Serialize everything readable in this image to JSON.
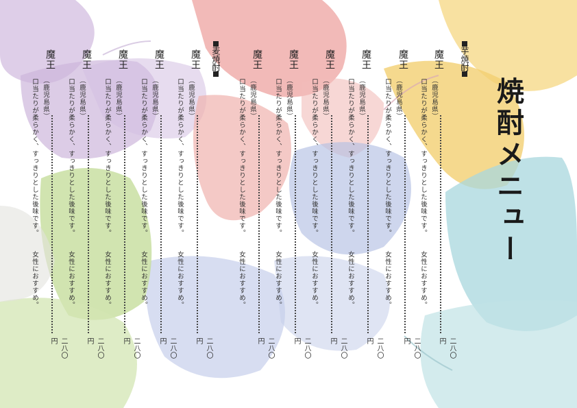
{
  "title": "焼酎メニュー",
  "sections": {
    "imo": "芋焼酎",
    "mugi": "麦焼酎"
  },
  "items": [
    {
      "name": "魔王",
      "origin": "（鹿児島県）",
      "desc1": "口当たりが柔らかく、すっきりとした後味です。",
      "desc2": "女性におすすめ。",
      "price": "二八〇円"
    },
    {
      "name": "魔王",
      "origin": "（鹿児島県）",
      "desc1": "口当たりが柔らかく、すっきりとした後味です。",
      "desc2": "女性におすすめ。",
      "price": "二八〇円"
    },
    {
      "name": "魔王",
      "origin": "（鹿児島県）",
      "desc1": "口当たりが柔らかく、すっきりとした後味です。",
      "desc2": "女性におすすめ。",
      "price": "二八〇円"
    },
    {
      "name": "魔王",
      "origin": "（鹿児島県）",
      "desc1": "口当たりが柔らかく、すっきりとした後味です。",
      "desc2": "女性におすすめ。",
      "price": "二八〇円"
    },
    {
      "name": "魔王",
      "origin": "（鹿児島県）",
      "desc1": "口当たりが柔らかく、すっきりとした後味です。",
      "desc2": "女性におすすめ。",
      "price": "二八〇円"
    },
    {
      "name": "魔王",
      "origin": "（鹿児島県）",
      "desc1": "口当たりが柔らかく、すっきりとした後味です。",
      "desc2": "女性におすすめ。",
      "price": "二八〇円"
    },
    {
      "name": "魔王",
      "origin": "（鹿児島県）",
      "desc1": "口当たりが柔らかく、すっきりとした後味です。",
      "desc2": "女性におすすめ。",
      "price": "二八〇円"
    },
    {
      "name": "魔王",
      "origin": "（鹿児島県）",
      "desc1": "口当たりが柔らかく、すっきりとした後味です。",
      "desc2": "女性におすすめ。",
      "price": "二八〇円"
    },
    {
      "name": "魔王",
      "origin": "（鹿児島県）",
      "desc1": "口当たりが柔らかく、すっきりとした後味です。",
      "desc2": "女性におすすめ。",
      "price": "二八〇円"
    },
    {
      "name": "魔王",
      "origin": "（鹿児島県）",
      "desc1": "口当たりが柔らかく、すっきりとした後味です。",
      "desc2": "女性におすすめ。",
      "price": "二八〇円"
    },
    {
      "name": "魔王",
      "origin": "（鹿児島県）",
      "desc1": "口当たりが柔らかく、すっきりとした後味です。",
      "desc2": "女性におすすめ。",
      "price": "二八〇円"
    }
  ],
  "colors": {
    "yellow": "#f6d98a",
    "red": "#eea3a0",
    "purple": "#cdb6dc",
    "blue": "#b4c0e4",
    "teal": "#a8d7dd",
    "green": "#c6dd9c"
  }
}
